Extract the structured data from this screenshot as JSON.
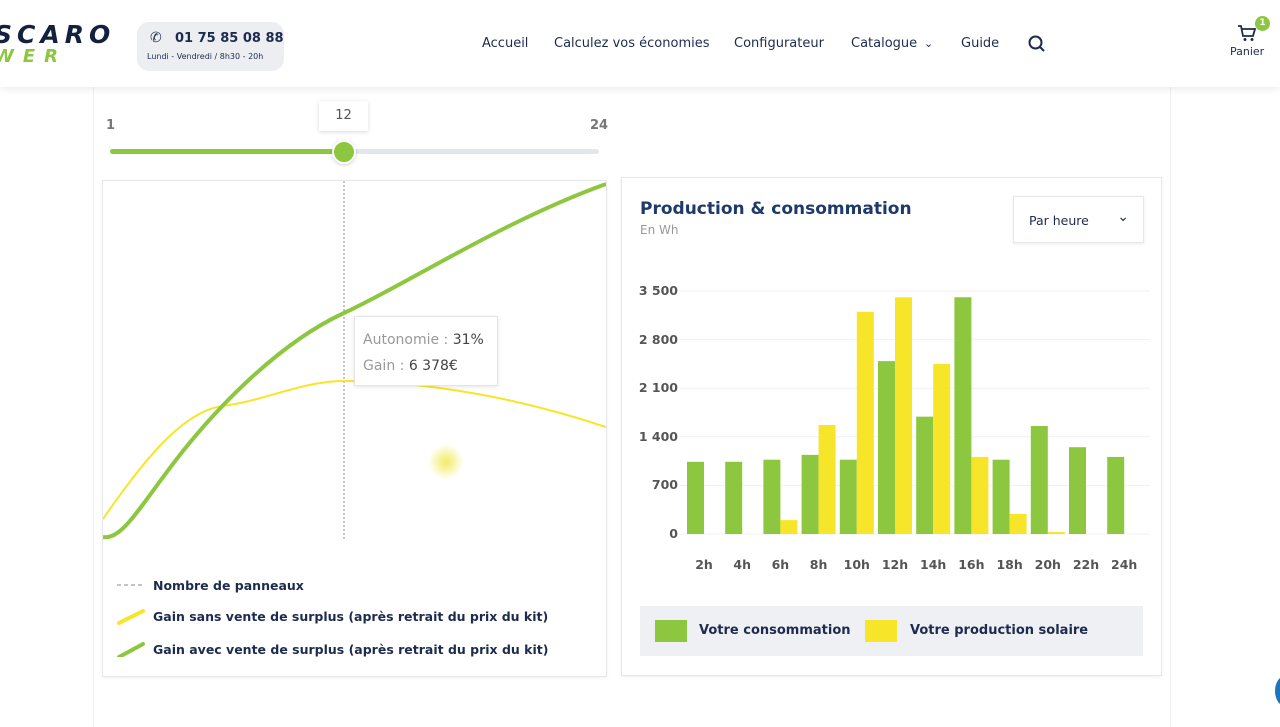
{
  "header": {
    "logo_line1": "SCARO",
    "logo_line2": "WER",
    "phone": "01 75 85 08 88",
    "hours": "Lundi - Vendredi / 8h30 - 20h",
    "nav": [
      "Accueil",
      "Calculez vos économies",
      "Configurateur",
      "Catalogue",
      "Guide"
    ],
    "cart_label": "Panier",
    "cart_count": "1"
  },
  "slider": {
    "min": "1",
    "max": "24",
    "value": "12"
  },
  "gain_chart": {
    "tooltip_label1": "Autonomie : ",
    "tooltip_value1": "31%",
    "tooltip_label2": "Gain : ",
    "tooltip_value2": "6 378€",
    "legend": [
      "Nombre de panneaux",
      "Gain sans vente de surplus (après retrait du prix du kit)",
      "Gain avec vente de surplus (après retrait du prix du kit)"
    ]
  },
  "production": {
    "title": "Production & consommation",
    "subtitle": "En Wh",
    "period_select": "Par heure"
  },
  "colors": {
    "green": "#8dc63f",
    "yellow": "#f7e52a"
  },
  "chart_data": {
    "type": "bar",
    "title": "Production & consommation",
    "ylabel": "En Wh",
    "ylim": [
      0,
      3500
    ],
    "yticks": [
      "0",
      "700",
      "1 400",
      "2 100",
      "2 800",
      "3 500"
    ],
    "categories": [
      "2h",
      "4h",
      "6h",
      "8h",
      "10h",
      "12h",
      "14h",
      "16h",
      "18h",
      "20h",
      "22h",
      "24h"
    ],
    "series": [
      {
        "name": "Votre consommation",
        "values": [
          1040,
          1040,
          1070,
          1140,
          1070,
          2490,
          1690,
          3410,
          1070,
          1555,
          1250,
          1110
        ]
      },
      {
        "name": "Votre production solaire",
        "values": [
          0,
          0,
          200,
          1570,
          3200,
          3410,
          2450,
          1110,
          290,
          30,
          0,
          0
        ]
      }
    ],
    "legend": "bottom"
  }
}
